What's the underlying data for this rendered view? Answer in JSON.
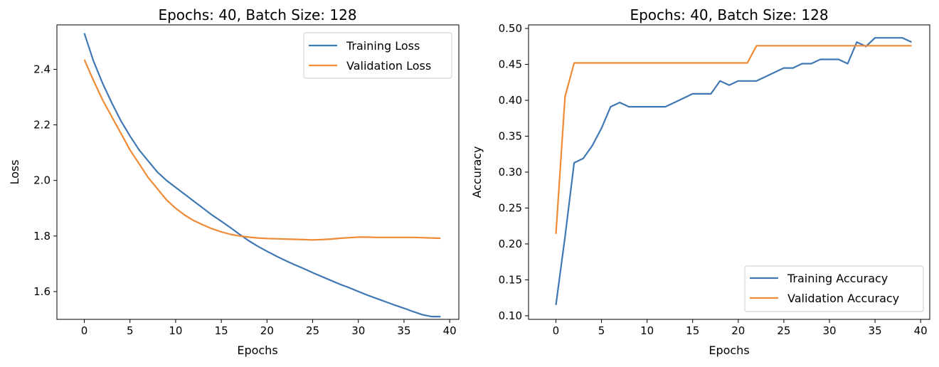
{
  "colors": {
    "training": "#3f78b2",
    "validation": "#ef8a35"
  },
  "chart_data": [
    {
      "type": "line",
      "title": "Epochs: 40, Batch Size: 128",
      "xlabel": "Epochs",
      "ylabel": "Loss",
      "xlim": [
        -3,
        41
      ],
      "ylim": [
        1.5,
        2.56
      ],
      "xticks": [
        0,
        5,
        10,
        15,
        20,
        25,
        30,
        35,
        40
      ],
      "yticks": [
        1.6,
        1.8,
        2.0,
        2.2,
        2.4
      ],
      "ytick_labels": [
        "1.6",
        "1.8",
        "2.0",
        "2.2",
        "2.4"
      ],
      "legend_position": "upper right",
      "x": [
        0,
        1,
        2,
        3,
        4,
        5,
        6,
        7,
        8,
        9,
        10,
        11,
        12,
        13,
        14,
        15,
        16,
        17,
        18,
        19,
        20,
        21,
        22,
        23,
        24,
        25,
        26,
        27,
        28,
        29,
        30,
        31,
        32,
        33,
        34,
        35,
        36,
        37,
        38,
        39
      ],
      "series": [
        {
          "name": "Training Loss",
          "values": [
            2.53,
            2.43,
            2.35,
            2.28,
            2.215,
            2.16,
            2.11,
            2.07,
            2.03,
            2.0,
            1.975,
            1.95,
            1.925,
            1.9,
            1.875,
            1.853,
            1.83,
            1.806,
            1.783,
            1.763,
            1.745,
            1.728,
            1.712,
            1.697,
            1.683,
            1.668,
            1.654,
            1.64,
            1.626,
            1.614,
            1.6,
            1.587,
            1.575,
            1.563,
            1.551,
            1.54,
            1.528,
            1.517,
            1.51,
            1.51
          ]
        },
        {
          "name": "Validation Loss",
          "values": [
            2.435,
            2.36,
            2.29,
            2.23,
            2.17,
            2.11,
            2.06,
            2.01,
            1.97,
            1.93,
            1.9,
            1.875,
            1.855,
            1.84,
            1.826,
            1.815,
            1.806,
            1.8,
            1.796,
            1.793,
            1.791,
            1.79,
            1.789,
            1.788,
            1.787,
            1.786,
            1.787,
            1.789,
            1.792,
            1.794,
            1.796,
            1.796,
            1.795,
            1.795,
            1.795,
            1.795,
            1.795,
            1.794,
            1.793,
            1.792
          ]
        }
      ]
    },
    {
      "type": "line",
      "title": "Epochs: 40, Batch Size: 128",
      "xlabel": "Epochs",
      "ylabel": "Accuracy",
      "xlim": [
        -3,
        41
      ],
      "ylim": [
        0.095,
        0.505
      ],
      "xticks": [
        0,
        5,
        10,
        15,
        20,
        25,
        30,
        35,
        40
      ],
      "yticks": [
        0.1,
        0.15,
        0.2,
        0.25,
        0.3,
        0.35,
        0.4,
        0.45,
        0.5
      ],
      "ytick_labels": [
        "0.10",
        "0.15",
        "0.20",
        "0.25",
        "0.30",
        "0.35",
        "0.40",
        "0.45",
        "0.50"
      ],
      "legend_position": "lower right",
      "x": [
        0,
        1,
        2,
        3,
        4,
        5,
        6,
        7,
        8,
        9,
        10,
        11,
        12,
        13,
        14,
        15,
        16,
        17,
        18,
        19,
        20,
        21,
        22,
        23,
        24,
        25,
        26,
        27,
        28,
        29,
        30,
        31,
        32,
        33,
        34,
        35,
        36,
        37,
        38,
        39
      ],
      "series": [
        {
          "name": "Training Accuracy",
          "values": [
            0.115,
            0.21,
            0.313,
            0.319,
            0.337,
            0.361,
            0.391,
            0.397,
            0.391,
            0.391,
            0.391,
            0.391,
            0.391,
            0.397,
            0.403,
            0.409,
            0.409,
            0.409,
            0.427,
            0.421,
            0.427,
            0.427,
            0.427,
            0.433,
            0.439,
            0.445,
            0.445,
            0.451,
            0.451,
            0.457,
            0.457,
            0.457,
            0.451,
            0.481,
            0.475,
            0.487,
            0.487,
            0.487,
            0.487,
            0.481
          ]
        },
        {
          "name": "Validation Accuracy",
          "values": [
            0.214,
            0.405,
            0.452,
            0.452,
            0.452,
            0.452,
            0.452,
            0.452,
            0.452,
            0.452,
            0.452,
            0.452,
            0.452,
            0.452,
            0.452,
            0.452,
            0.452,
            0.452,
            0.452,
            0.452,
            0.452,
            0.452,
            0.476,
            0.476,
            0.476,
            0.476,
            0.476,
            0.476,
            0.476,
            0.476,
            0.476,
            0.476,
            0.476,
            0.476,
            0.476,
            0.476,
            0.476,
            0.476,
            0.476,
            0.476
          ]
        }
      ]
    }
  ]
}
